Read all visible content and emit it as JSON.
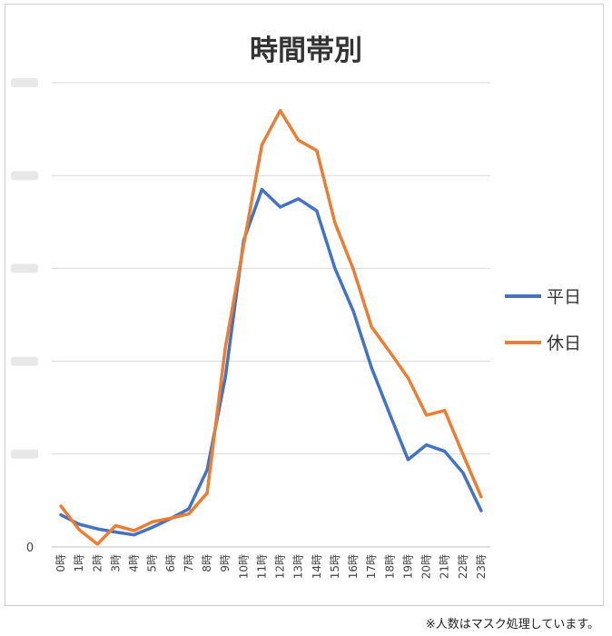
{
  "chart_data": {
    "type": "line",
    "title": "時間帯別",
    "categories": [
      "0時",
      "1時",
      "2時",
      "3時",
      "4時",
      "5時",
      "6時",
      "7時",
      "8時",
      "9時",
      "10時",
      "11時",
      "12時",
      "13時",
      "14時",
      "15時",
      "16時",
      "17時",
      "18時",
      "19時",
      "20時",
      "21時",
      "22時",
      "23時"
    ],
    "series": [
      {
        "name": "平日",
        "color": "#4472C4",
        "values": [
          345,
          245,
          195,
          160,
          130,
          210,
          305,
          410,
          830,
          1830,
          3300,
          3850,
          3660,
          3750,
          3620,
          3000,
          2540,
          1930,
          1430,
          940,
          1100,
          1030,
          800,
          390
        ]
      },
      {
        "name": "休日",
        "color": "#ED7D31",
        "values": [
          440,
          185,
          30,
          230,
          175,
          270,
          310,
          355,
          580,
          2150,
          3250,
          4330,
          4700,
          4380,
          4270,
          3490,
          2990,
          2370,
          2100,
          1820,
          1420,
          1470,
          1000,
          540
        ]
      }
    ],
    "ylim": [
      0,
      5000
    ],
    "ytick_step": 1000,
    "y_zero_label": "0",
    "grid": true,
    "legend": "right"
  },
  "footnote": "※人数はマスク処理しています。"
}
